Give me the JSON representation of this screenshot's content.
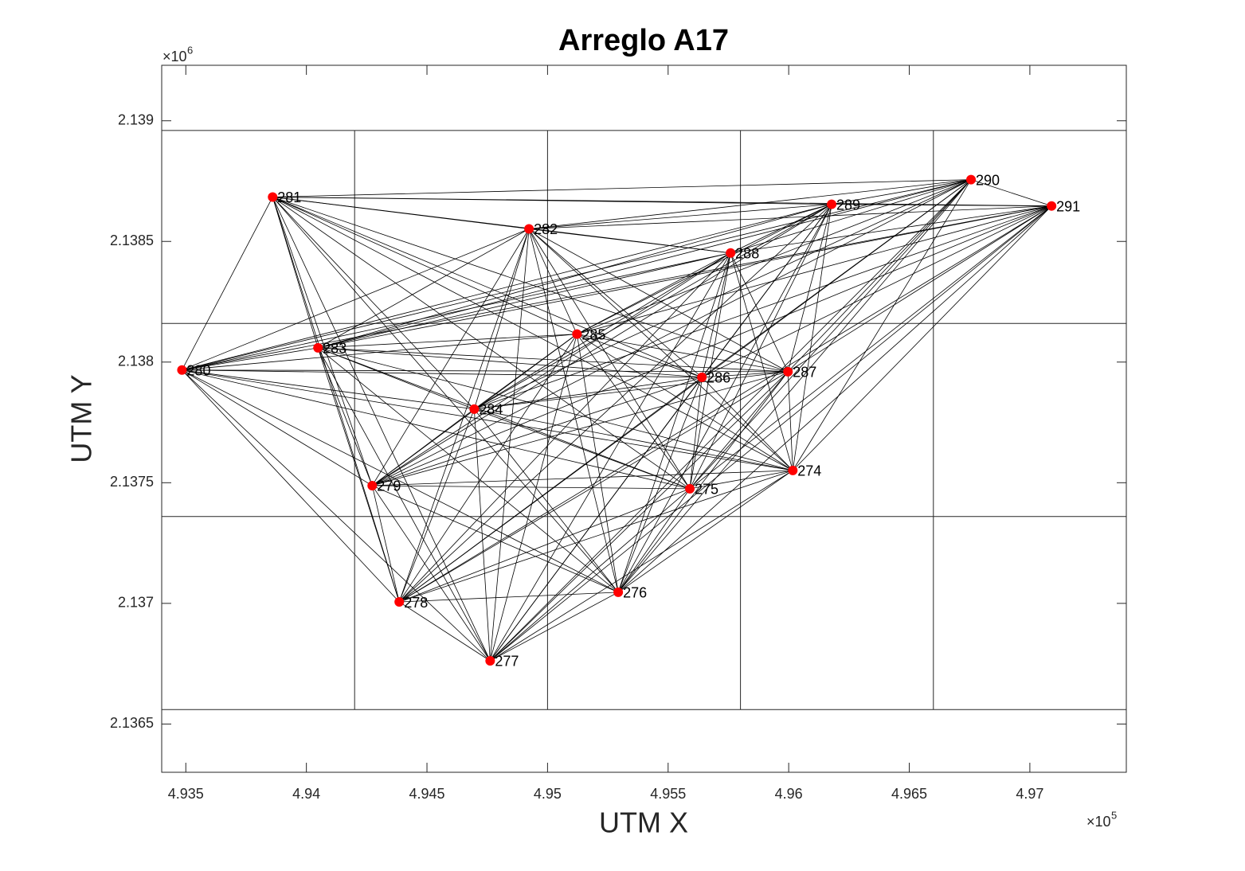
{
  "chart_data": {
    "type": "scatter",
    "title": "Arreglo A17",
    "xlabel": "UTM X",
    "ylabel": "UTM Y",
    "x_scale": "×10",
    "x_scale_power": "5",
    "y_scale": "×10",
    "y_scale_power": "6",
    "point_labels": [
      "281",
      "282",
      "288",
      "289",
      "290",
      "291",
      "285",
      "283",
      "280",
      "286",
      "287",
      "284",
      "279",
      "275",
      "274",
      "278",
      "276",
      "277"
    ],
    "x": [
      4.9386,
      4.94923,
      4.95759,
      4.96178,
      4.96756,
      4.9709,
      4.95122,
      4.94048,
      4.93484,
      4.9564,
      4.95997,
      4.94696,
      4.94273,
      4.9559,
      4.96017,
      4.94385,
      4.95293,
      4.94762
    ],
    "y": [
      2.138684,
      2.138552,
      2.138452,
      2.138654,
      2.138756,
      2.138647,
      2.138116,
      2.138059,
      2.137967,
      2.137937,
      2.13796,
      2.137805,
      2.137488,
      2.137475,
      2.137551,
      2.137006,
      2.137046,
      2.136762
    ],
    "color": "#ff0000",
    "line_color": "#000000",
    "xlim": [
      4.934,
      4.974
    ],
    "ylim": [
      2.1363,
      2.13923
    ],
    "xticks": [
      4.935,
      4.94,
      4.945,
      4.95,
      4.955,
      4.96,
      4.965,
      4.97
    ],
    "yticks": [
      2.1365,
      2.137,
      2.1375,
      2.138,
      2.1385,
      2.139
    ],
    "grid_x": [
      4.942,
      4.95,
      4.958,
      4.966
    ],
    "grid_y": [
      2.13656,
      2.13736,
      2.13816,
      2.13896
    ]
  }
}
